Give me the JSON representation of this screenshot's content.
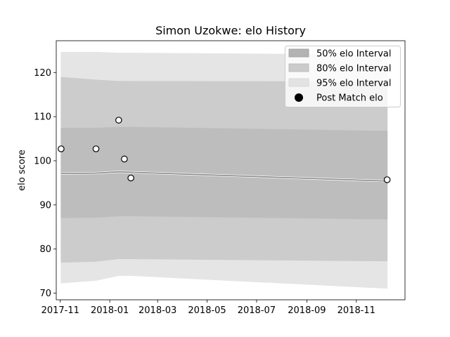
{
  "chart_data": {
    "type": "area",
    "title": "Simon Uzokwe: elo History",
    "xlabel": "",
    "ylabel": "elo score",
    "xlim": [
      "2017-10-27",
      "2018-12-31"
    ],
    "ylim": [
      68.5,
      127.2
    ],
    "x_ticks": [
      "2017-11",
      "2018-01",
      "2018-03",
      "2018-05",
      "2018-07",
      "2018-09",
      "2018-11"
    ],
    "y_ticks": [
      70,
      80,
      90,
      100,
      110,
      120
    ],
    "grid": false,
    "legend_position": "top-right",
    "bands": [
      {
        "name": "95% elo Interval",
        "color": "#e5e5e5",
        "x": [
          "2017-11-02",
          "2017-12-15",
          "2018-01-12",
          "2018-01-27",
          "2018-12-09"
        ],
        "lower": [
          72.3,
          72.9,
          74.0,
          74.0,
          71.1
        ],
        "upper": [
          124.6,
          124.6,
          124.4,
          124.4,
          124.0
        ]
      },
      {
        "name": "80% elo Interval",
        "color": "#cccccc",
        "x": [
          "2017-11-02",
          "2017-12-15",
          "2018-01-12",
          "2018-01-27",
          "2018-12-09"
        ],
        "lower": [
          77.0,
          77.2,
          77.8,
          77.8,
          77.3
        ],
        "upper": [
          118.9,
          118.3,
          118.0,
          118.0,
          117.9
        ]
      },
      {
        "name": "50% elo Interval",
        "color": "#bdbdbd",
        "x": [
          "2017-11-02",
          "2017-12-15",
          "2018-01-12",
          "2018-01-27",
          "2018-12-09"
        ],
        "lower": [
          87.1,
          87.2,
          87.5,
          87.5,
          86.8
        ],
        "upper": [
          107.4,
          107.4,
          107.6,
          107.6,
          106.7
        ]
      }
    ],
    "median_line": {
      "x": [
        "2017-11-02",
        "2017-12-15",
        "2018-01-12",
        "2018-01-27",
        "2018-12-09"
      ],
      "y": [
        97.1,
        97.2,
        97.5,
        97.4,
        95.4
      ]
    },
    "series": [
      {
        "name": "Post Match elo",
        "color": "#000000",
        "x": [
          "2017-11-02",
          "2017-12-15",
          "2018-01-12",
          "2018-01-19",
          "2018-01-27",
          "2018-12-09"
        ],
        "y": [
          102.7,
          102.7,
          109.2,
          100.4,
          96.1,
          95.7
        ]
      }
    ]
  }
}
